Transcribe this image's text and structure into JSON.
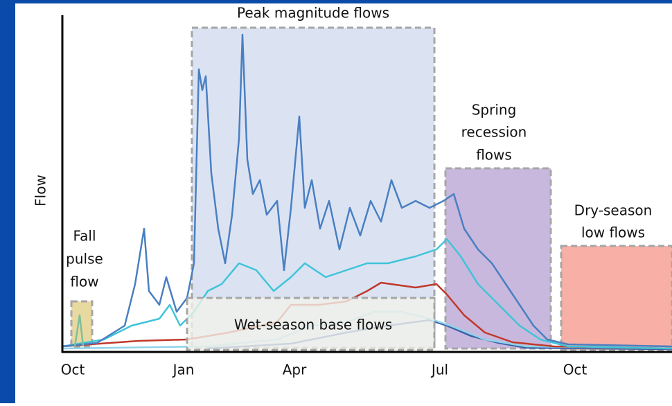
{
  "axes": {
    "y_label": "Flow",
    "x_ticks": [
      "Oct",
      "Jan",
      "Apr",
      "Jul",
      "Oct"
    ]
  },
  "regions": {
    "peak": {
      "label": [
        "Peak magnitude flows"
      ]
    },
    "spring": {
      "label": [
        "Spring",
        "recession",
        "flows"
      ]
    },
    "dry": {
      "label": [
        "Dry-season",
        "low flows"
      ]
    },
    "fall": {
      "label": [
        "Fall",
        "pulse",
        "flow"
      ]
    },
    "wet": {
      "label": [
        "Wet-season base flows"
      ]
    }
  }
}
